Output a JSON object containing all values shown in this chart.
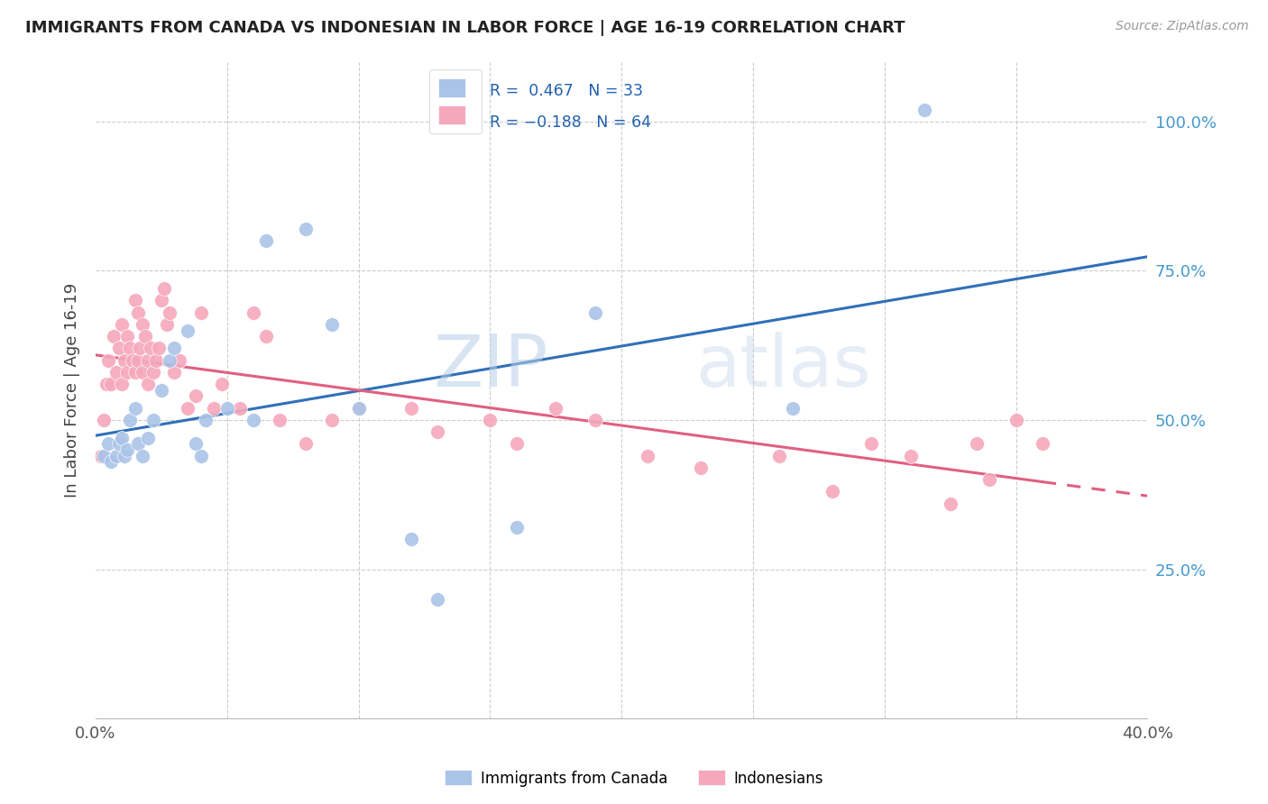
{
  "title": "IMMIGRANTS FROM CANADA VS INDONESIAN IN LABOR FORCE | AGE 16-19 CORRELATION CHART",
  "source": "Source: ZipAtlas.com",
  "ylabel": "In Labor Force | Age 16-19",
  "canada_R": 0.467,
  "canada_N": 33,
  "indonesia_R": -0.188,
  "indonesia_N": 64,
  "canada_color": "#aac4e8",
  "canada_line_color": "#3070b8",
  "indonesia_color": "#f5a8bc",
  "indonesia_line_color": "#e06080",
  "xlim": [
    0.0,
    0.4
  ],
  "ylim": [
    0.0,
    1.1
  ],
  "canada_x": [
    0.003,
    0.005,
    0.006,
    0.008,
    0.009,
    0.01,
    0.011,
    0.012,
    0.013,
    0.015,
    0.016,
    0.018,
    0.02,
    0.022,
    0.025,
    0.028,
    0.03,
    0.035,
    0.038,
    0.04,
    0.042,
    0.05,
    0.06,
    0.065,
    0.08,
    0.09,
    0.1,
    0.12,
    0.13,
    0.16,
    0.19,
    0.265,
    0.315
  ],
  "canada_y": [
    0.44,
    0.46,
    0.43,
    0.44,
    0.46,
    0.47,
    0.44,
    0.45,
    0.5,
    0.52,
    0.46,
    0.44,
    0.47,
    0.5,
    0.55,
    0.6,
    0.62,
    0.65,
    0.46,
    0.44,
    0.5,
    0.52,
    0.5,
    0.8,
    0.82,
    0.66,
    0.52,
    0.3,
    0.2,
    0.32,
    0.68,
    0.52,
    1.02
  ],
  "indonesia_x": [
    0.002,
    0.003,
    0.004,
    0.005,
    0.006,
    0.007,
    0.008,
    0.009,
    0.01,
    0.01,
    0.011,
    0.012,
    0.012,
    0.013,
    0.014,
    0.015,
    0.015,
    0.016,
    0.016,
    0.017,
    0.018,
    0.018,
    0.019,
    0.02,
    0.02,
    0.021,
    0.022,
    0.023,
    0.024,
    0.025,
    0.026,
    0.027,
    0.028,
    0.03,
    0.032,
    0.035,
    0.038,
    0.04,
    0.045,
    0.048,
    0.055,
    0.06,
    0.065,
    0.07,
    0.08,
    0.09,
    0.1,
    0.12,
    0.13,
    0.15,
    0.16,
    0.175,
    0.19,
    0.21,
    0.23,
    0.26,
    0.28,
    0.295,
    0.31,
    0.325,
    0.335,
    0.34,
    0.35,
    0.36
  ],
  "indonesia_y": [
    0.44,
    0.5,
    0.56,
    0.6,
    0.56,
    0.64,
    0.58,
    0.62,
    0.56,
    0.66,
    0.6,
    0.64,
    0.58,
    0.62,
    0.6,
    0.7,
    0.58,
    0.68,
    0.6,
    0.62,
    0.66,
    0.58,
    0.64,
    0.6,
    0.56,
    0.62,
    0.58,
    0.6,
    0.62,
    0.7,
    0.72,
    0.66,
    0.68,
    0.58,
    0.6,
    0.52,
    0.54,
    0.68,
    0.52,
    0.56,
    0.52,
    0.68,
    0.64,
    0.5,
    0.46,
    0.5,
    0.52,
    0.52,
    0.48,
    0.5,
    0.46,
    0.52,
    0.5,
    0.44,
    0.42,
    0.44,
    0.38,
    0.46,
    0.44,
    0.36,
    0.46,
    0.4,
    0.5,
    0.46
  ]
}
